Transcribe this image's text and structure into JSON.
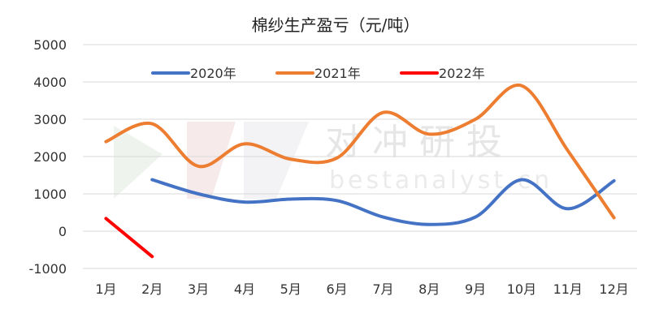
{
  "chart_data": {
    "type": "line",
    "title": "棉纱生产盈亏（元/吨）",
    "categories": [
      "1月",
      "2月",
      "3月",
      "4月",
      "5月",
      "6月",
      "7月",
      "8月",
      "9月",
      "10月",
      "11月",
      "12月"
    ],
    "ylim": [
      -1000,
      5000
    ],
    "yticks": [
      5000,
      4000,
      3000,
      2000,
      1000,
      0,
      -1000
    ],
    "ytick_labels": [
      "5000",
      "4000",
      "3000",
      "2000",
      "1000",
      "0",
      "-1000"
    ],
    "negative_tick_color": "#ff0000",
    "grid": true,
    "legend_position": "top",
    "series": [
      {
        "name": "2020年",
        "color": "#4472c4",
        "values": [
          null,
          1380,
          1000,
          780,
          860,
          820,
          380,
          180,
          380,
          1380,
          600,
          1350
        ]
      },
      {
        "name": "2021年",
        "color": "#ed7d31",
        "values": [
          2400,
          2880,
          1740,
          2340,
          1930,
          1960,
          3180,
          2600,
          3000,
          3900,
          2160,
          360
        ]
      },
      {
        "name": "2022年",
        "color": "#ff0000",
        "values": [
          340,
          -680,
          null,
          null,
          null,
          null,
          null,
          null,
          null,
          null,
          null,
          null
        ]
      }
    ]
  },
  "watermark": {
    "text": "对冲研投",
    "subtext": "bestanalyst.cn"
  }
}
